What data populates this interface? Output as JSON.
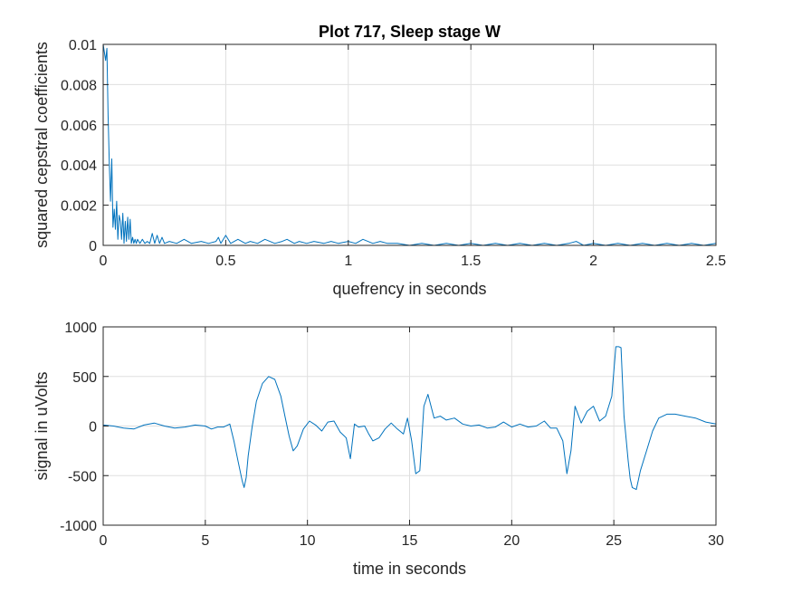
{
  "chart_data": [
    {
      "type": "line",
      "title": "Plot 717, Sleep stage W",
      "xlabel": "quefrency in seconds",
      "ylabel": "squared cepstral coefficients",
      "xlim": [
        0,
        2.5
      ],
      "ylim": [
        0,
        0.01
      ],
      "xticks": [
        0,
        0.5,
        1,
        1.5,
        2,
        2.5
      ],
      "xtick_labels": [
        "0",
        "0.5",
        "1",
        "1.5",
        "2",
        "2.5"
      ],
      "yticks": [
        0,
        0.002,
        0.004,
        0.006,
        0.008,
        0.01
      ],
      "ytick_labels": [
        "0",
        "0.002",
        "0.004",
        "0.006",
        "0.008",
        "0.01"
      ],
      "grid": true,
      "color": "#0072bd",
      "series": [
        {
          "x": [
            0.0,
            0.01,
            0.015,
            0.02,
            0.025,
            0.03,
            0.035,
            0.04,
            0.045,
            0.05,
            0.055,
            0.06,
            0.065,
            0.07,
            0.075,
            0.08,
            0.085,
            0.09,
            0.095,
            0.1,
            0.105,
            0.11,
            0.115,
            0.12,
            0.125,
            0.13,
            0.135,
            0.14,
            0.15,
            0.16,
            0.17,
            0.18,
            0.19,
            0.2,
            0.21,
            0.22,
            0.23,
            0.24,
            0.25,
            0.27,
            0.3,
            0.33,
            0.36,
            0.4,
            0.43,
            0.46,
            0.47,
            0.48,
            0.5,
            0.52,
            0.55,
            0.58,
            0.6,
            0.63,
            0.66,
            0.7,
            0.73,
            0.75,
            0.78,
            0.8,
            0.83,
            0.86,
            0.9,
            0.93,
            0.96,
            1.0,
            1.03,
            1.06,
            1.1,
            1.13,
            1.16,
            1.2,
            1.25,
            1.3,
            1.35,
            1.4,
            1.45,
            1.5,
            1.55,
            1.6,
            1.65,
            1.7,
            1.75,
            1.8,
            1.85,
            1.9,
            1.93,
            1.96,
            2.0,
            2.05,
            2.1,
            2.15,
            2.2,
            2.25,
            2.3,
            2.35,
            2.4,
            2.45,
            2.5
          ],
          "y": [
            0.01,
            0.0092,
            0.0098,
            0.0065,
            0.004,
            0.0022,
            0.0043,
            0.0009,
            0.0018,
            0.0008,
            0.0022,
            0.0003,
            0.0015,
            0.0012,
            0.0003,
            0.0016,
            0.0001,
            0.0012,
            0.0002,
            0.0014,
            0.0003,
            0.0013,
            0.0001,
            0.0004,
            0.0001,
            0.0003,
            0.0001,
            0.0003,
            0.0001,
            0.0003,
            0.0001,
            0.0002,
            0.0001,
            0.0006,
            0.0001,
            0.0005,
            0.0001,
            0.0004,
            0.0001,
            0.0002,
            0.0001,
            0.0003,
            0.0001,
            0.0002,
            0.0001,
            0.0002,
            0.0004,
            0.0001,
            0.0005,
            0.0001,
            0.0003,
            0.0001,
            0.0002,
            0.0001,
            0.0003,
            0.0001,
            0.0002,
            0.0003,
            0.0001,
            0.0002,
            0.0001,
            0.0002,
            0.0001,
            0.0002,
            0.0001,
            0.0002,
            0.0001,
            0.0003,
            0.0001,
            0.0002,
            0.0001,
            0.0001,
            0.0,
            0.0001,
            0.0,
            0.0001,
            0.0,
            0.0001,
            0.0,
            0.0001,
            0.0,
            0.0001,
            0.0,
            0.0001,
            0.0,
            0.0001,
            0.0002,
            0.0,
            0.0001,
            0.0,
            0.0001,
            0.0,
            0.0001,
            0.0,
            0.0001,
            0.0,
            0.0001,
            0.0,
            0.0001
          ]
        }
      ]
    },
    {
      "type": "line",
      "title": "",
      "xlabel": "time in seconds",
      "ylabel": "signal in uVolts",
      "xlim": [
        0,
        30
      ],
      "ylim": [
        -1000,
        1000
      ],
      "xticks": [
        0,
        5,
        10,
        15,
        20,
        25,
        30
      ],
      "xtick_labels": [
        "0",
        "5",
        "10",
        "15",
        "20",
        "25",
        "30"
      ],
      "yticks": [
        -1000,
        -500,
        0,
        500,
        1000
      ],
      "ytick_labels": [
        "-1000",
        "-500",
        "0",
        "500",
        "1000"
      ],
      "grid": true,
      "color": "#0072bd",
      "series": [
        {
          "x": [
            0.0,
            0.5,
            1.0,
            1.5,
            2.0,
            2.5,
            3.0,
            3.5,
            4.0,
            4.5,
            5.0,
            5.3,
            5.6,
            5.9,
            6.2,
            6.4,
            6.6,
            6.8,
            6.9,
            7.0,
            7.1,
            7.3,
            7.5,
            7.8,
            8.1,
            8.4,
            8.7,
            8.9,
            9.1,
            9.3,
            9.5,
            9.8,
            10.1,
            10.4,
            10.7,
            11.0,
            11.3,
            11.6,
            11.9,
            12.1,
            12.3,
            12.5,
            12.8,
            13.0,
            13.2,
            13.5,
            13.8,
            14.1,
            14.4,
            14.7,
            14.9,
            15.1,
            15.3,
            15.5,
            15.7,
            15.9,
            16.2,
            16.5,
            16.8,
            17.2,
            17.6,
            18.0,
            18.4,
            18.8,
            19.2,
            19.6,
            20.0,
            20.4,
            20.8,
            21.2,
            21.6,
            21.9,
            22.2,
            22.5,
            22.7,
            22.9,
            23.1,
            23.4,
            23.7,
            24.0,
            24.3,
            24.6,
            24.9,
            25.1,
            25.25,
            25.35,
            25.5,
            25.7,
            25.8,
            25.9,
            26.1,
            26.3,
            26.6,
            26.9,
            27.2,
            27.6,
            28.0,
            28.5,
            29.0,
            29.5,
            30.0
          ],
          "y": [
            10,
            0,
            -20,
            -30,
            10,
            30,
            0,
            -20,
            -10,
            10,
            0,
            -30,
            -10,
            -10,
            20,
            -150,
            -350,
            -550,
            -620,
            -520,
            -300,
            0,
            250,
            430,
            500,
            470,
            300,
            100,
            -100,
            -250,
            -200,
            -30,
            50,
            10,
            -50,
            40,
            50,
            -60,
            -120,
            -330,
            20,
            -10,
            0,
            -80,
            -150,
            -120,
            -30,
            30,
            -30,
            -80,
            80,
            -150,
            -480,
            -450,
            200,
            320,
            80,
            100,
            60,
            80,
            20,
            0,
            10,
            -20,
            -10,
            40,
            -10,
            20,
            -10,
            0,
            50,
            -20,
            -20,
            -150,
            -480,
            -250,
            200,
            30,
            150,
            200,
            50,
            100,
            300,
            800,
            800,
            790,
            100,
            -350,
            -530,
            -620,
            -640,
            -450,
            -250,
            -50,
            80,
            120,
            120,
            100,
            80,
            40,
            20
          ]
        }
      ]
    }
  ]
}
